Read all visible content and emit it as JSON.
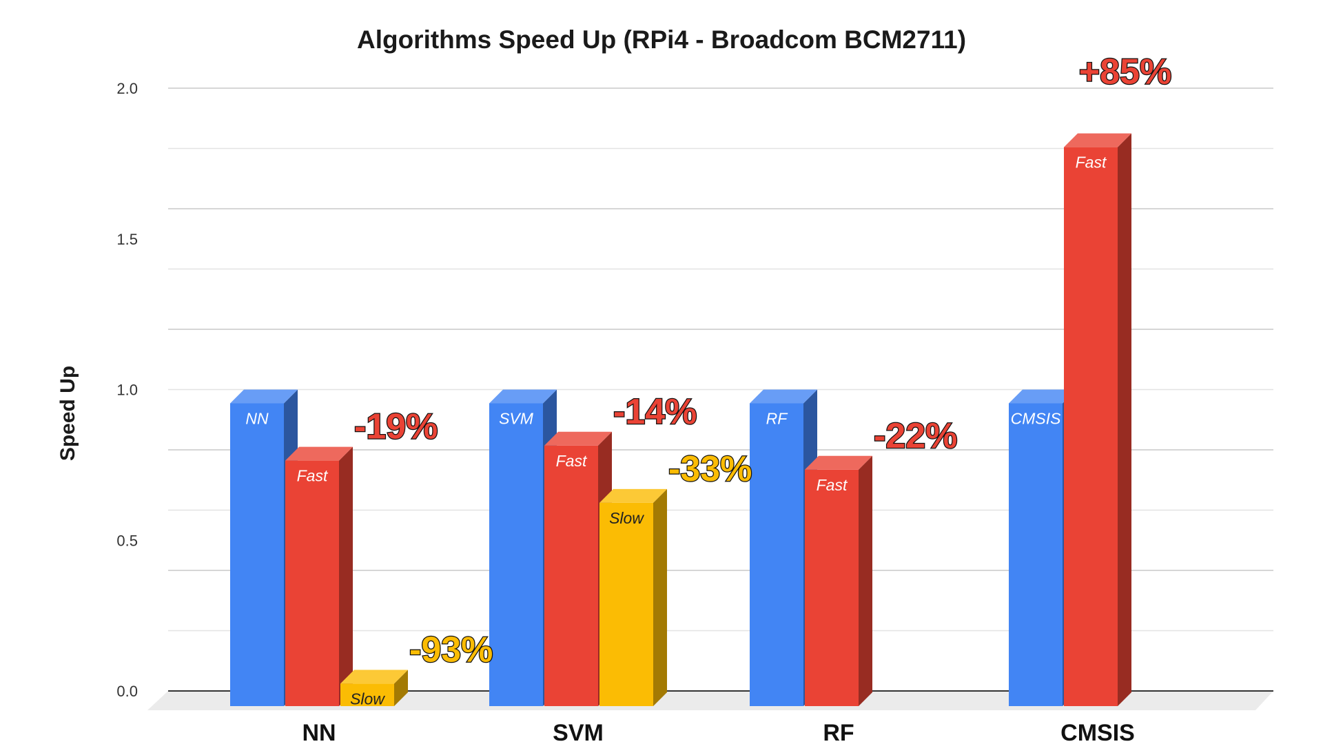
{
  "chart_data": {
    "type": "bar",
    "title": "Algorithms Speed Up (RPi4 - Broadcom BCM2711)",
    "ylabel": "Speed Up",
    "xlabel": "",
    "ylim": [
      0,
      2.0
    ],
    "yticks": [
      "0.0",
      "0.5",
      "1.0",
      "1.5",
      "2.0"
    ],
    "grid": true,
    "categories": [
      "NN",
      "SVM",
      "RF",
      "CMSIS"
    ],
    "groups": [
      {
        "category": "NN",
        "bars": [
          {
            "label": "NN",
            "value": 1.0,
            "color": "#4285F4"
          },
          {
            "label": "Fast",
            "value": 0.81,
            "color": "#EA4335",
            "annotation": "-19%"
          },
          {
            "label": "Slow",
            "value": 0.07,
            "color": "#FBBC04",
            "annotation": "-93%"
          }
        ]
      },
      {
        "category": "SVM",
        "bars": [
          {
            "label": "SVM",
            "value": 1.0,
            "color": "#4285F4"
          },
          {
            "label": "Fast",
            "value": 0.86,
            "color": "#EA4335",
            "annotation": "-14%"
          },
          {
            "label": "Slow",
            "value": 0.67,
            "color": "#FBBC04",
            "annotation": "-33%"
          }
        ]
      },
      {
        "category": "RF",
        "bars": [
          {
            "label": "RF",
            "value": 1.0,
            "color": "#4285F4"
          },
          {
            "label": "Fast",
            "value": 0.78,
            "color": "#EA4335",
            "annotation": "-22%"
          }
        ]
      },
      {
        "category": "CMSIS",
        "bars": [
          {
            "label": "CMSIS",
            "value": 1.0,
            "color": "#4285F4"
          },
          {
            "label": "Fast",
            "value": 1.85,
            "color": "#EA4335",
            "annotation": "+85%"
          }
        ]
      }
    ]
  }
}
